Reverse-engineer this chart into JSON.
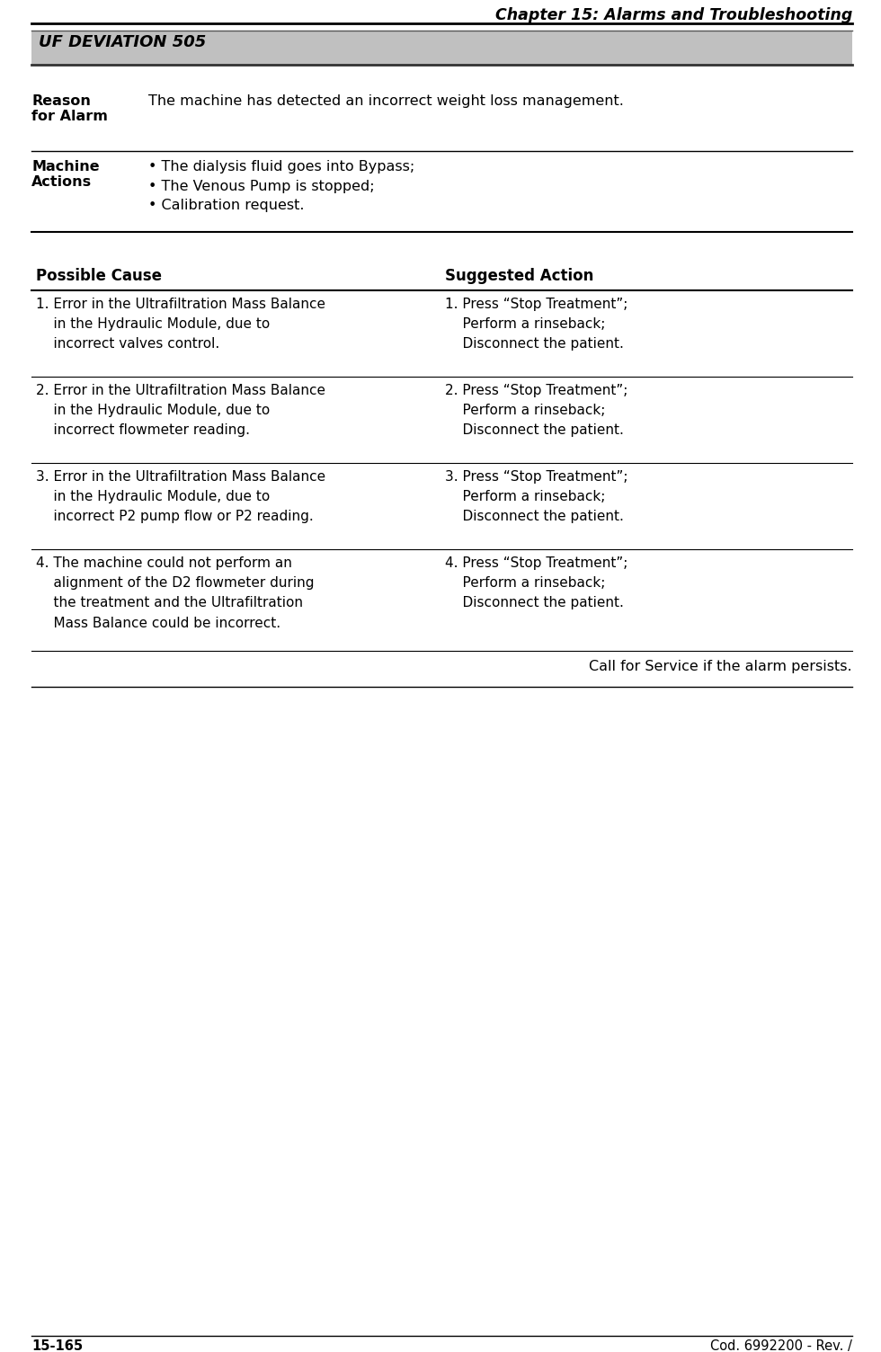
{
  "chapter_title": "Chapter 15: Alarms and Troubleshooting",
  "alarm_title": "UF DEVIATION 505",
  "alarm_bg_color": "#c0c0c0",
  "reason_label": "Reason\nfor Alarm",
  "reason_text": "The machine has detected an incorrect weight loss management.",
  "machine_label": "Machine\nActions",
  "machine_actions": [
    "• The dialysis fluid goes into Bypass;",
    "• The Venous Pump is stopped;",
    "• Calibration request."
  ],
  "col1_header": "Possible Cause",
  "col2_header": "Suggested Action",
  "rows": [
    {
      "cause": "1. Error in the Ultrafiltration Mass Balance\n    in the Hydraulic Module, due to\n    incorrect valves control.",
      "action": "1. Press “Stop Treatment”;\n    Perform a rinseback;\n    Disconnect the patient."
    },
    {
      "cause": "2. Error in the Ultrafiltration Mass Balance\n    in the Hydraulic Module, due to\n    incorrect flowmeter reading.",
      "action": "2. Press “Stop Treatment”;\n    Perform a rinseback;\n    Disconnect the patient."
    },
    {
      "cause": "3. Error in the Ultrafiltration Mass Balance\n    in the Hydraulic Module, due to\n    incorrect P2 pump flow or P2 reading.",
      "action": "3. Press “Stop Treatment”;\n    Perform a rinseback;\n    Disconnect the patient."
    },
    {
      "cause": "4. The machine could not perform an\n    alignment of the D2 flowmeter during\n    the treatment and the Ultrafiltration\n    Mass Balance could be incorrect.",
      "action": "4. Press “Stop Treatment”;\n    Perform a rinseback;\n    Disconnect the patient."
    }
  ],
  "call_service": "Call for Service if the alarm persists.",
  "footer_left": "15-165",
  "footer_right": "Cod. 6992200 - Rev. /",
  "page_bg": "#ffffff",
  "text_color": "#000000",
  "line_color": "#000000"
}
